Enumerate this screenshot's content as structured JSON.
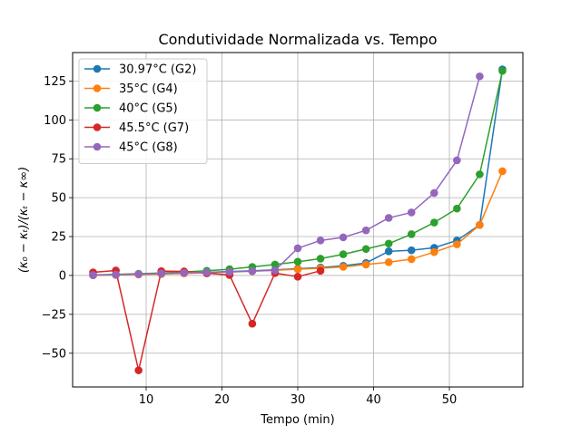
{
  "chart_data": {
    "type": "line",
    "title": "Condutividade Normalizada vs. Tempo",
    "xlabel": "Tempo (min)",
    "ylabel": "(κ₀ − κₜ)/(κₜ − κ∞)",
    "xlim": [
      0.3,
      59.7
    ],
    "ylim": [
      -71.7,
      143.3
    ],
    "xticks": [
      10,
      20,
      30,
      40,
      50
    ],
    "yticks": [
      -50,
      -25,
      0,
      25,
      50,
      75,
      100,
      125
    ],
    "ytick_labels": [
      "−50",
      "−25",
      "0",
      "25",
      "50",
      "75",
      "100",
      "125"
    ],
    "grid": true,
    "legend_position": "top-left",
    "series": [
      {
        "name": "30.97°C (G2)",
        "color": "#1f77b4",
        "x": [
          3,
          6,
          9,
          12,
          15,
          18,
          21,
          24,
          27,
          30,
          33,
          36,
          39,
          42,
          45,
          48,
          51,
          54,
          57
        ],
        "y": [
          0.2,
          0.5,
          0.8,
          1.2,
          1.6,
          2.0,
          2.5,
          3.0,
          3.6,
          4.3,
          5.1,
          6.2,
          8.0,
          15.5,
          16.2,
          17.8,
          22.5,
          32.5,
          132.5
        ]
      },
      {
        "name": "35°C (G4)",
        "color": "#ff7f0e",
        "x": [
          3,
          6,
          9,
          12,
          15,
          18,
          21,
          24,
          27,
          30,
          33,
          36,
          39,
          42,
          45,
          48,
          51,
          54,
          57
        ],
        "y": [
          0.1,
          0.3,
          0.6,
          0.9,
          1.3,
          1.7,
          2.2,
          2.7,
          3.3,
          4.0,
          4.6,
          5.5,
          7.0,
          8.5,
          10.5,
          15.0,
          20.0,
          32.5,
          67.0
        ]
      },
      {
        "name": "40°C (G5)",
        "color": "#2ca02c",
        "x": [
          3,
          6,
          9,
          12,
          15,
          18,
          21,
          24,
          27,
          30,
          33,
          36,
          39,
          42,
          45,
          48,
          51,
          54,
          57
        ],
        "y": [
          0.3,
          0.7,
          1.1,
          1.6,
          2.2,
          3.0,
          4.0,
          5.5,
          7.0,
          8.8,
          10.8,
          13.6,
          17.0,
          20.5,
          26.5,
          34.0,
          43.0,
          65.0,
          131.5
        ]
      },
      {
        "name": "45.5°C (G7)",
        "color": "#d62728",
        "x": [
          3,
          6,
          9,
          12,
          15,
          18,
          21,
          24,
          27,
          30,
          33
        ],
        "y": [
          2.0,
          3.2,
          -61.0,
          2.8,
          2.6,
          1.4,
          0.3,
          -31.0,
          1.5,
          -0.8,
          3.0
        ]
      },
      {
        "name": "45°C (G8)",
        "color": "#9467bd",
        "x": [
          3,
          6,
          9,
          12,
          15,
          18,
          21,
          24,
          27,
          30,
          33,
          36,
          39,
          42,
          45,
          48,
          51,
          54
        ],
        "y": [
          0.2,
          0.5,
          0.9,
          1.3,
          1.7,
          2.0,
          2.3,
          2.8,
          3.3,
          17.5,
          22.5,
          24.5,
          29.0,
          37.0,
          40.5,
          53.0,
          74.0,
          128.0
        ]
      }
    ]
  }
}
